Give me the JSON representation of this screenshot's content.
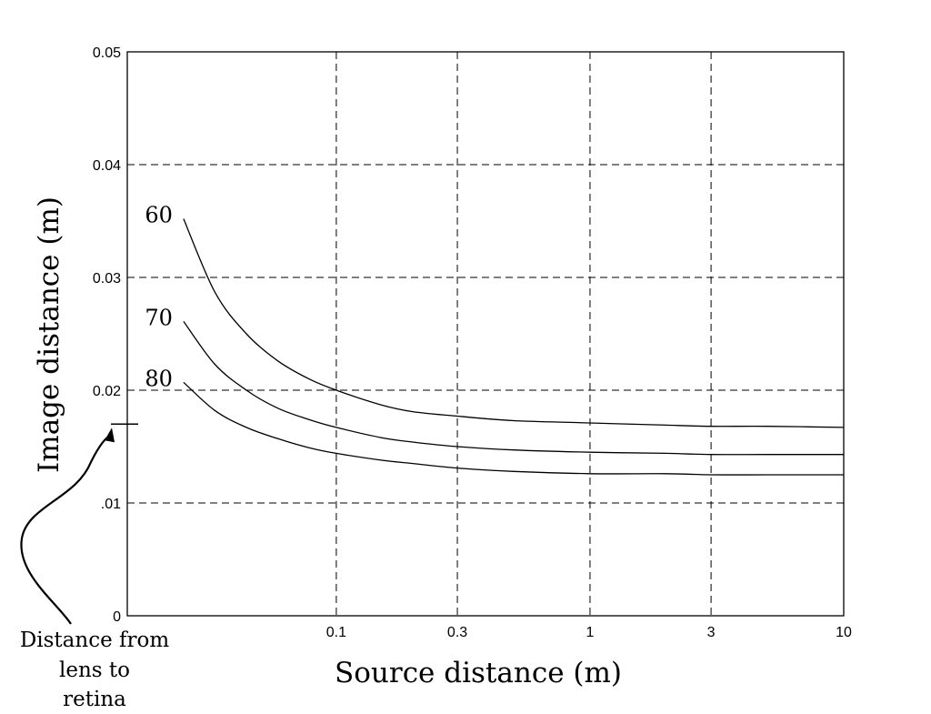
{
  "chart_data": {
    "type": "line",
    "title": "",
    "xlabel": "Source distance (m)",
    "ylabel": "Image distance (m)",
    "x_scale": "log",
    "xlim": [
      0.015,
      10
    ],
    "ylim": [
      0,
      0.05
    ],
    "grid": true,
    "x_ticks": [
      {
        "value": 0.1,
        "label": "0.1"
      },
      {
        "value": 0.3,
        "label": "0.3"
      },
      {
        "value": 1,
        "label": "1"
      },
      {
        "value": 3,
        "label": "3"
      },
      {
        "value": 10,
        "label": "10"
      }
    ],
    "y_ticks": [
      {
        "value": 0,
        "label": "0"
      },
      {
        "value": 0.01,
        "label": ".01"
      },
      {
        "value": 0.02,
        "label": "0.02"
      },
      {
        "value": 0.03,
        "label": "0.03"
      },
      {
        "value": 0.04,
        "label": "0.04"
      },
      {
        "value": 0.05,
        "label": "0.05"
      }
    ],
    "series": [
      {
        "name": "60",
        "x": [
          0.025,
          0.0332,
          0.0442,
          0.0588,
          0.078,
          0.1,
          0.15,
          0.2,
          0.3,
          0.5,
          1,
          2,
          3,
          5,
          10
        ],
        "y": [
          0.0352,
          0.0287,
          0.025,
          0.0226,
          0.021,
          0.02,
          0.0187,
          0.0181,
          0.0177,
          0.0173,
          0.0171,
          0.0169,
          0.0168,
          0.0168,
          0.0167
        ]
      },
      {
        "name": "70",
        "x": [
          0.025,
          0.0332,
          0.0442,
          0.0588,
          0.078,
          0.1,
          0.15,
          0.2,
          0.3,
          0.5,
          1,
          2,
          3,
          5,
          10
        ],
        "y": [
          0.0261,
          0.0223,
          0.02,
          0.0184,
          0.0174,
          0.0167,
          0.0158,
          0.0154,
          0.015,
          0.0147,
          0.0145,
          0.0144,
          0.0143,
          0.0143,
          0.0143
        ]
      },
      {
        "name": "80",
        "x": [
          0.025,
          0.0332,
          0.0442,
          0.0588,
          0.078,
          0.1,
          0.15,
          0.2,
          0.3,
          0.5,
          1,
          2,
          3,
          5,
          10
        ],
        "y": [
          0.0207,
          0.0182,
          0.0167,
          0.0157,
          0.0149,
          0.0144,
          0.0138,
          0.0135,
          0.0131,
          0.0128,
          0.0126,
          0.0126,
          0.0125,
          0.0125,
          0.0125
        ]
      }
    ],
    "annotations": [
      {
        "text_lines": [
          "Distance from",
          "lens to",
          "retina"
        ],
        "y_value": 0.017
      }
    ]
  }
}
